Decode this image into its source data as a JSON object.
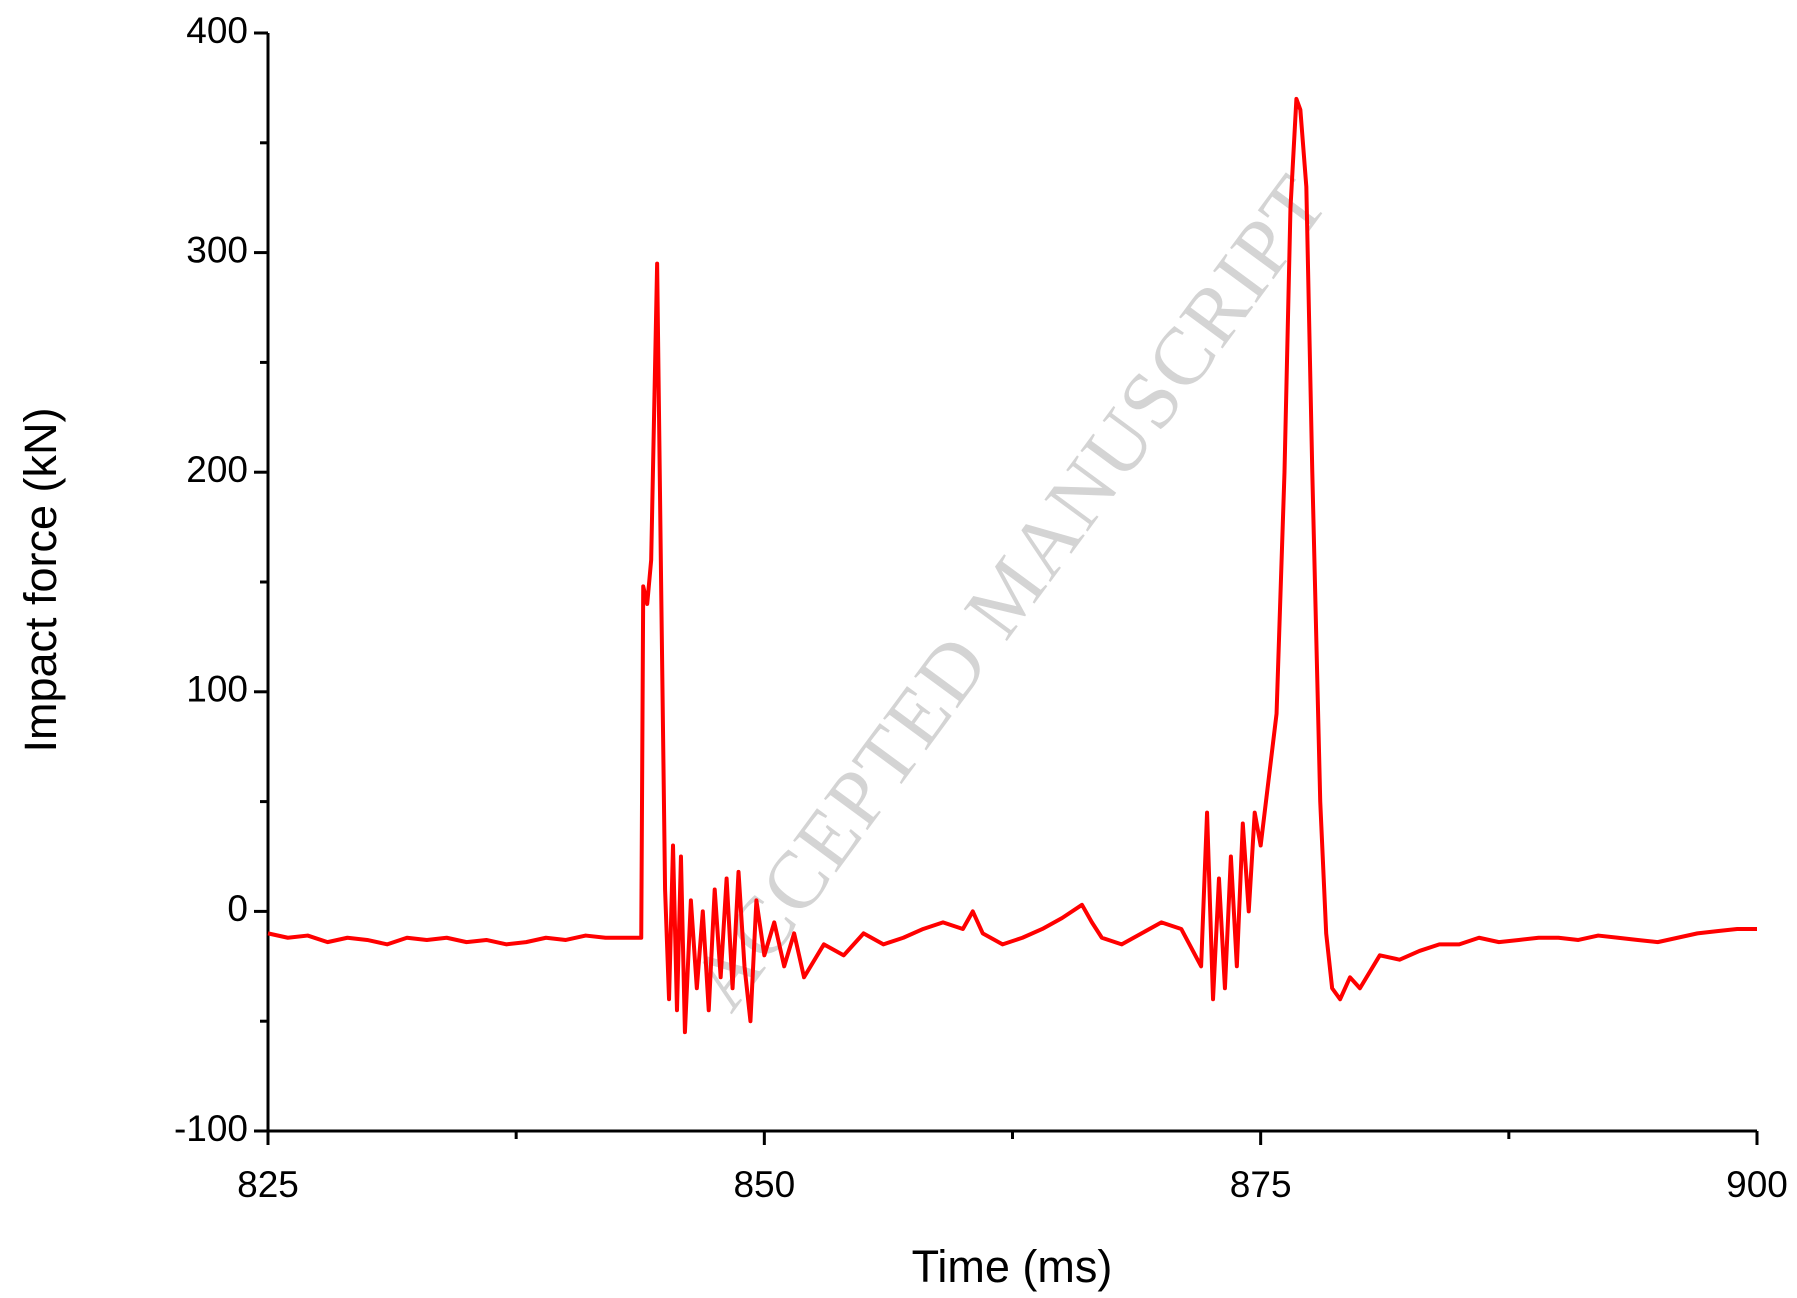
{
  "chart_data": {
    "type": "line",
    "xlabel": "Time (ms)",
    "ylabel": "Impact force (kN)",
    "watermark": "ACCEPTED MANUSCRIPT",
    "xlim": [
      825,
      900
    ],
    "xticks": [
      825,
      850,
      875,
      900
    ],
    "ylim": [
      -100,
      400
    ],
    "yticks": [
      -100,
      0,
      100,
      200,
      300,
      400
    ],
    "grid": false,
    "series": [
      {
        "color": "#ff0000",
        "x": [
          825,
          826,
          827,
          828,
          829,
          830,
          831,
          832,
          833,
          834,
          835,
          836,
          837,
          838,
          839,
          840,
          841,
          842,
          843,
          843.8,
          843.9,
          844.1,
          844.3,
          844.6,
          844.8,
          845.0,
          845.2,
          845.4,
          845.6,
          845.8,
          846.0,
          846.3,
          846.6,
          846.9,
          847.2,
          847.5,
          847.8,
          848.1,
          848.4,
          848.7,
          849.0,
          849.3,
          849.6,
          850,
          850.5,
          851,
          851.5,
          852,
          853,
          854,
          855,
          856,
          857,
          858,
          859,
          860,
          860.5,
          861,
          862,
          863,
          864,
          865,
          866,
          866.5,
          867,
          868,
          869,
          870,
          871,
          872,
          872.3,
          872.6,
          872.9,
          873.2,
          873.5,
          873.8,
          874.1,
          874.4,
          874.7,
          875,
          875.4,
          875.8,
          876.2,
          876.5,
          876.8,
          877.0,
          877.3,
          877.6,
          878.0,
          878.3,
          878.6,
          879,
          879.5,
          880,
          881,
          882,
          883,
          884,
          885,
          886,
          887,
          888,
          889,
          890,
          891,
          892,
          893,
          894,
          895,
          896,
          897,
          898,
          899,
          900
        ],
        "values": [
          -10,
          -12,
          -11,
          -14,
          -12,
          -13,
          -15,
          -12,
          -13,
          -12,
          -14,
          -13,
          -15,
          -14,
          -12,
          -13,
          -11,
          -12,
          -12,
          -12,
          148,
          140,
          160,
          295,
          150,
          10,
          -40,
          30,
          -45,
          25,
          -55,
          5,
          -35,
          0,
          -45,
          10,
          -30,
          15,
          -35,
          18,
          -25,
          -50,
          5,
          -20,
          -5,
          -25,
          -10,
          -30,
          -15,
          -20,
          -10,
          -15,
          -12,
          -8,
          -5,
          -8,
          0,
          -10,
          -15,
          -12,
          -8,
          -3,
          3,
          -5,
          -12,
          -15,
          -10,
          -5,
          -8,
          -25,
          45,
          -40,
          15,
          -35,
          25,
          -25,
          40,
          0,
          45,
          30,
          60,
          90,
          200,
          320,
          370,
          365,
          330,
          200,
          50,
          -10,
          -35,
          -40,
          -30,
          -35,
          -20,
          -22,
          -18,
          -15,
          -15,
          -12,
          -14,
          -13,
          -12,
          -12,
          -13,
          -11,
          -12,
          -13,
          -14,
          -12,
          -10,
          -9,
          -8,
          -8
        ]
      }
    ]
  }
}
